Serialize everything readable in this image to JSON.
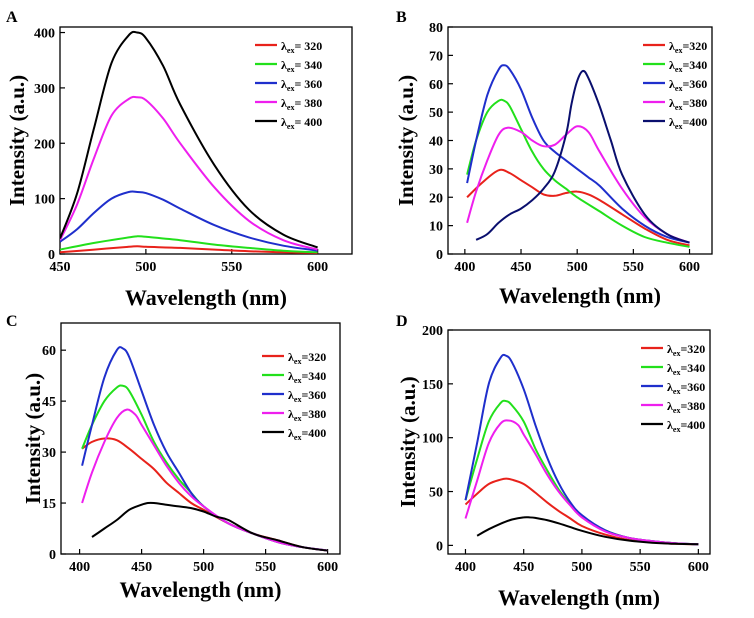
{
  "chart_data": [
    {
      "panel": "A",
      "type": "line",
      "xlabel": "Wavelength (nm)",
      "ylabel": "Intensity (a.u.)",
      "xlim": [
        450,
        620
      ],
      "ylim": [
        0,
        410
      ],
      "xticks": [
        450,
        500,
        550,
        600
      ],
      "yticks": [
        0,
        100,
        200,
        300,
        400
      ],
      "legend_eq": "= ",
      "series": [
        {
          "exc": "320",
          "color": "#e8221b",
          "x": [
            450,
            470,
            490,
            495,
            500,
            520,
            540,
            560,
            580,
            600
          ],
          "y": [
            3,
            8,
            13,
            14,
            13,
            11,
            8,
            5,
            3,
            2
          ]
        },
        {
          "exc": "340",
          "color": "#22e01b",
          "x": [
            450,
            470,
            490,
            495,
            500,
            520,
            540,
            560,
            580,
            600
          ],
          "y": [
            8,
            20,
            30,
            32,
            31,
            25,
            17,
            11,
            6,
            3
          ]
        },
        {
          "exc": "360",
          "color": "#1f2fcc",
          "x": [
            450,
            460,
            470,
            480,
            490,
            495,
            500,
            510,
            520,
            540,
            560,
            580,
            600
          ],
          "y": [
            22,
            45,
            75,
            100,
            112,
            112,
            110,
            98,
            82,
            52,
            30,
            15,
            6
          ]
        },
        {
          "exc": "380",
          "color": "#ee1fee",
          "x": [
            450,
            460,
            470,
            480,
            490,
            495,
            500,
            510,
            520,
            540,
            560,
            580,
            600
          ],
          "y": [
            25,
            90,
            175,
            250,
            280,
            283,
            278,
            245,
            200,
            120,
            60,
            25,
            8
          ]
        },
        {
          "exc": "400",
          "color": "#000000",
          "x": [
            450,
            460,
            470,
            480,
            490,
            495,
            500,
            510,
            520,
            540,
            560,
            580,
            600
          ],
          "y": [
            28,
            110,
            230,
            345,
            395,
            400,
            390,
            340,
            270,
            160,
            80,
            35,
            12
          ]
        }
      ]
    },
    {
      "panel": "B",
      "type": "line",
      "xlabel": "Wavelength (nm)",
      "ylabel": "Intensity (a.u.)",
      "xlim": [
        385,
        620
      ],
      "ylim": [
        0,
        80
      ],
      "xticks": [
        400,
        450,
        500,
        550,
        600
      ],
      "yticks": [
        0,
        10,
        20,
        30,
        40,
        50,
        60,
        70,
        80
      ],
      "legend_eq": "=",
      "series": [
        {
          "exc": "320",
          "color": "#e8221b",
          "x": [
            402,
            415,
            430,
            440,
            450,
            460,
            470,
            480,
            490,
            500,
            510,
            520,
            540,
            560,
            580,
            600
          ],
          "y": [
            20,
            25,
            29.5,
            28.5,
            26,
            23.5,
            21,
            20.5,
            21.5,
            22,
            21,
            19,
            14,
            9,
            5,
            3
          ]
        },
        {
          "exc": "340",
          "color": "#22e01b",
          "x": [
            402,
            410,
            420,
            430,
            435,
            440,
            450,
            460,
            470,
            480,
            490,
            500,
            520,
            540,
            560,
            580,
            600
          ],
          "y": [
            28,
            40,
            50,
            54,
            54,
            52,
            44,
            36,
            30,
            26,
            23,
            20,
            15,
            10,
            6,
            4,
            2.5
          ]
        },
        {
          "exc": "360",
          "color": "#1f2fcc",
          "x": [
            402,
            410,
            420,
            430,
            435,
            440,
            450,
            460,
            470,
            480,
            490,
            500,
            510,
            520,
            540,
            560,
            580,
            600
          ],
          "y": [
            25,
            40,
            56,
            65,
            66.5,
            65,
            58,
            48,
            40,
            36,
            33,
            30,
            27,
            24,
            16,
            10,
            6,
            4
          ]
        },
        {
          "exc": "380",
          "color": "#ee1fee",
          "x": [
            402,
            410,
            420,
            430,
            438,
            450,
            460,
            470,
            480,
            490,
            500,
            510,
            520,
            540,
            560,
            580,
            600
          ],
          "y": [
            11,
            22,
            33,
            42,
            44.5,
            43,
            40,
            38,
            38.5,
            42,
            45,
            43,
            36,
            23,
            13,
            7,
            4
          ]
        },
        {
          "exc": "400",
          "color": "#0a0f6e",
          "x": [
            410,
            420,
            430,
            440,
            450,
            460,
            470,
            480,
            490,
            495,
            500,
            505,
            510,
            520,
            530,
            540,
            560,
            580,
            600
          ],
          "y": [
            5,
            7,
            11,
            14,
            16,
            19,
            23,
            29,
            42,
            53,
            61,
            64.5,
            62,
            52,
            40,
            28,
            14,
            7,
            4
          ]
        }
      ]
    },
    {
      "panel": "C",
      "type": "line",
      "xlabel": "Wavelength (nm)",
      "ylabel": "Intensity (a.u.)",
      "xlim": [
        385,
        610
      ],
      "ylim": [
        0,
        68
      ],
      "xticks": [
        400,
        450,
        500,
        550,
        600
      ],
      "yticks": [
        0,
        15,
        30,
        45,
        60
      ],
      "legend_eq": "=",
      "series": [
        {
          "exc": "320",
          "color": "#e8221b",
          "x": [
            402,
            410,
            420,
            430,
            440,
            450,
            460,
            470,
            480,
            490,
            500,
            520,
            540,
            560,
            580,
            600
          ],
          "y": [
            31,
            33,
            34,
            33.5,
            31,
            28,
            25,
            21,
            18,
            15,
            13,
            9,
            6,
            4,
            2,
            1
          ]
        },
        {
          "exc": "340",
          "color": "#22e01b",
          "x": [
            402,
            410,
            420,
            430,
            435,
            440,
            450,
            460,
            470,
            480,
            490,
            500,
            520,
            540,
            560,
            580,
            600
          ],
          "y": [
            31,
            38,
            45,
            49,
            49.5,
            48,
            41,
            33,
            27,
            22,
            18,
            14,
            9,
            6,
            3.5,
            2,
            1
          ]
        },
        {
          "exc": "360",
          "color": "#1f2fcc",
          "x": [
            402,
            410,
            420,
            430,
            435,
            440,
            450,
            460,
            470,
            480,
            490,
            500,
            520,
            540,
            560,
            580,
            600
          ],
          "y": [
            26,
            38,
            52,
            60,
            60.5,
            58,
            48,
            38,
            30,
            24,
            18,
            14,
            9,
            6,
            3.5,
            2,
            1
          ]
        },
        {
          "exc": "380",
          "color": "#ee1fee",
          "x": [
            402,
            410,
            420,
            430,
            438,
            445,
            450,
            460,
            470,
            480,
            490,
            500,
            520,
            540,
            560,
            580,
            600
          ],
          "y": [
            15,
            24,
            33,
            40,
            42.5,
            41,
            38,
            32,
            26,
            21,
            17,
            14,
            9,
            6,
            3.5,
            2,
            1
          ]
        },
        {
          "exc": "400",
          "color": "#000000",
          "x": [
            410,
            420,
            430,
            440,
            450,
            455,
            460,
            470,
            480,
            490,
            500,
            510,
            520,
            540,
            560,
            580,
            600
          ],
          "y": [
            5,
            7.5,
            10,
            13,
            14.5,
            15,
            15,
            14.5,
            14,
            13.5,
            12.5,
            11,
            10,
            6,
            4,
            2,
            1
          ]
        }
      ]
    },
    {
      "panel": "D",
      "type": "line",
      "xlabel": "Wavelength (nm)",
      "ylabel": "Intensity (a.u.)",
      "xlim": [
        385,
        610
      ],
      "ylim": [
        -8,
        200
      ],
      "xticks": [
        400,
        450,
        500,
        550,
        600
      ],
      "yticks": [
        0,
        50,
        100,
        150,
        200
      ],
      "legend_eq": "=",
      "series": [
        {
          "exc": "320",
          "color": "#e8221b",
          "x": [
            400,
            410,
            420,
            430,
            435,
            440,
            450,
            460,
            470,
            480,
            490,
            500,
            520,
            540,
            560,
            580,
            600
          ],
          "y": [
            38,
            48,
            57,
            61,
            62,
            61,
            57,
            49,
            40,
            32,
            25,
            18,
            10,
            5,
            3,
            1.5,
            1
          ]
        },
        {
          "exc": "340",
          "color": "#22e01b",
          "x": [
            400,
            410,
            420,
            430,
            435,
            440,
            450,
            460,
            470,
            480,
            490,
            500,
            520,
            540,
            560,
            580,
            600
          ],
          "y": [
            42,
            80,
            115,
            132,
            134,
            130,
            115,
            90,
            70,
            52,
            38,
            27,
            14,
            7,
            4,
            2,
            1
          ]
        },
        {
          "exc": "360",
          "color": "#1f2fcc",
          "x": [
            400,
            410,
            420,
            430,
            435,
            440,
            450,
            460,
            470,
            480,
            490,
            500,
            520,
            540,
            560,
            580,
            600
          ],
          "y": [
            42,
            95,
            150,
            174,
            176,
            170,
            145,
            112,
            82,
            58,
            40,
            28,
            14,
            7,
            4,
            2,
            1
          ]
        },
        {
          "exc": "380",
          "color": "#ee1fee",
          "x": [
            400,
            410,
            420,
            430,
            437,
            445,
            450,
            460,
            470,
            480,
            490,
            500,
            520,
            540,
            560,
            580,
            600
          ],
          "y": [
            25,
            60,
            95,
            113,
            116,
            112,
            103,
            85,
            66,
            50,
            37,
            26,
            13,
            7,
            4,
            2,
            1
          ]
        },
        {
          "exc": "400",
          "color": "#000000",
          "x": [
            410,
            420,
            430,
            440,
            450,
            455,
            460,
            470,
            480,
            490,
            500,
            520,
            540,
            560,
            580,
            600
          ],
          "y": [
            9,
            15,
            20,
            24,
            26,
            26,
            25.5,
            23.5,
            20.5,
            17,
            13.5,
            8,
            4.5,
            2.5,
            1.5,
            1
          ]
        }
      ]
    }
  ]
}
